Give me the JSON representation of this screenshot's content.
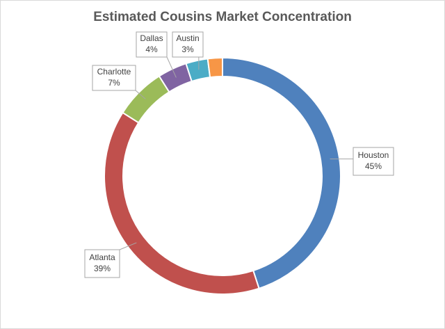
{
  "chart_data": {
    "type": "donut",
    "title": "Estimated Cousins Market Concentration",
    "categories": [
      "Houston",
      "Atlanta",
      "Charlotte",
      "Dallas",
      "Austin",
      null
    ],
    "values": [
      45,
      39,
      7,
      4,
      3,
      2
    ],
    "value_labels": [
      "45%",
      "39%",
      "7%",
      "4%",
      "3%",
      null
    ],
    "colors": [
      "#4f81bd",
      "#c0504d",
      "#9bbb59",
      "#8064a2",
      "#4bacc6",
      "#f79646"
    ]
  }
}
